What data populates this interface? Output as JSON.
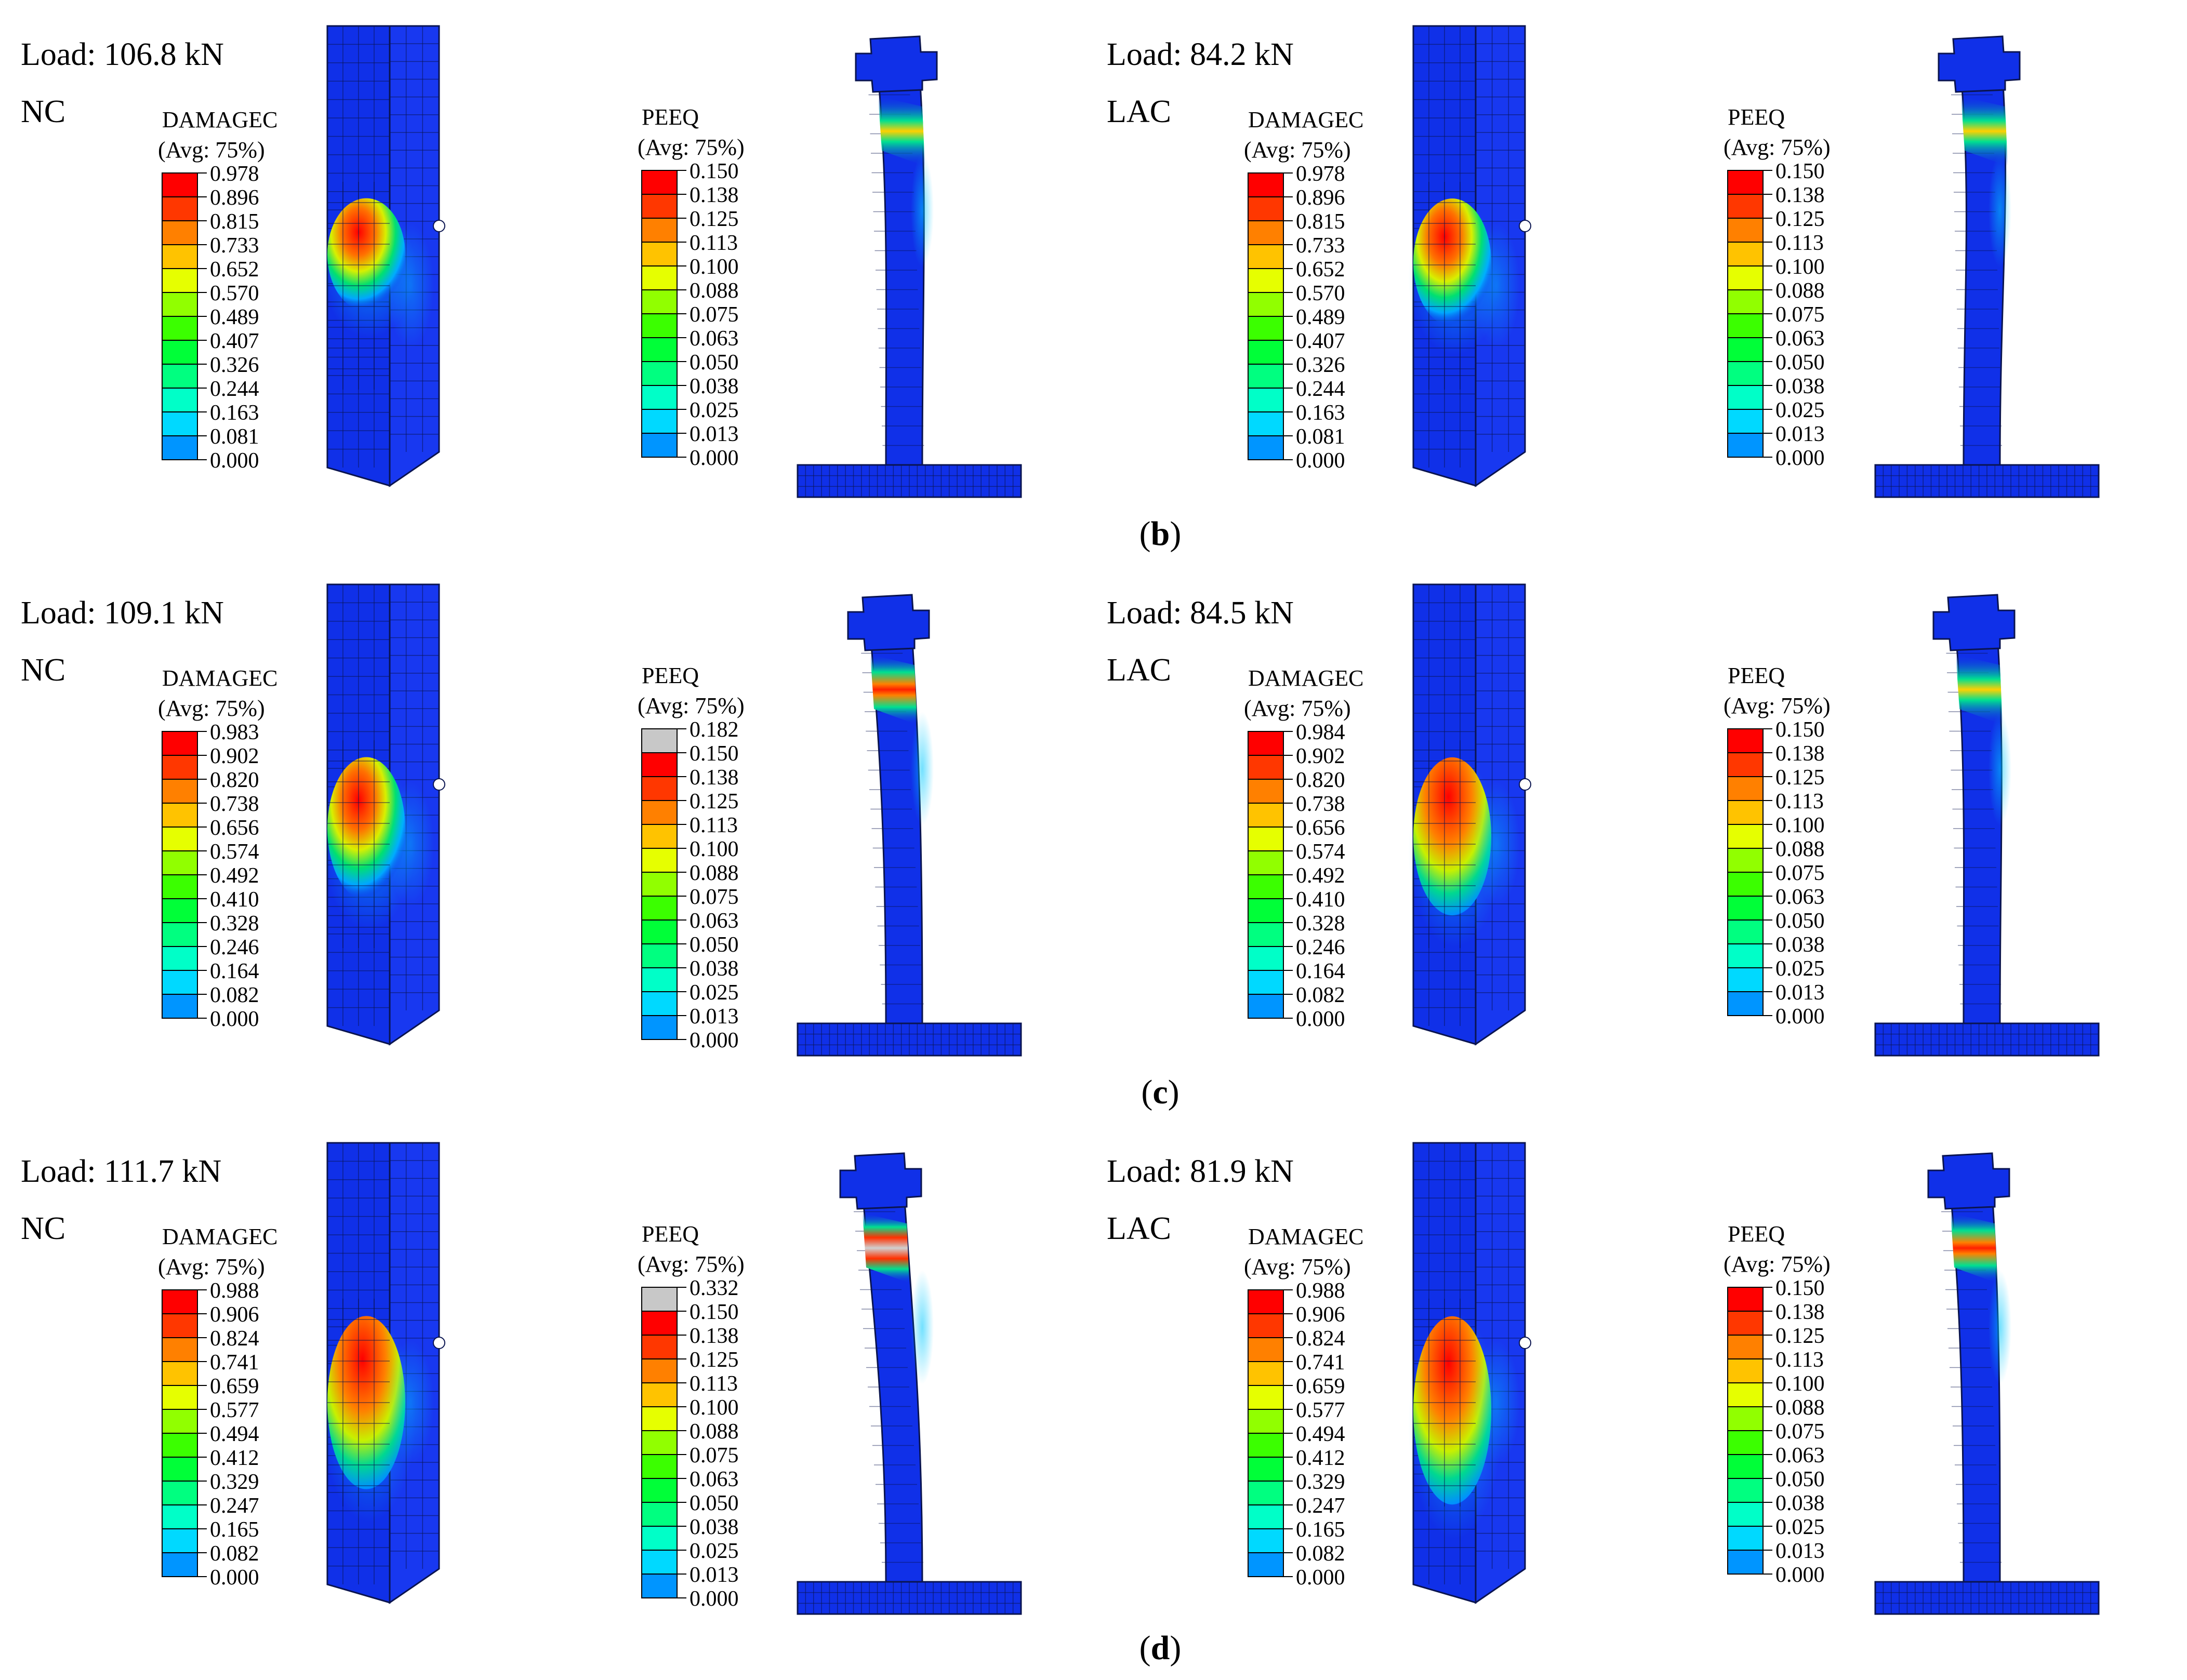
{
  "colors": {
    "legend": [
      "#0000ff",
      "#0048ff",
      "#0095ff",
      "#00d9ff",
      "#00ffc8",
      "#00ff80",
      "#00ff38",
      "#3bff00",
      "#91ff00",
      "#e6ff00",
      "#ffc300",
      "#ff8000",
      "#ff3700",
      "#ff0000"
    ],
    "legend_over": "#c8c8c8",
    "model_base": "#1030e8",
    "mesh_line": "#0a1450"
  },
  "rows": [
    {
      "caption": {
        "open": "(",
        "letter": "b",
        "close": ")"
      },
      "panels": [
        {
          "load": "Load: 106.8 kN",
          "mix": "NC",
          "damage": {
            "title": "DAMAGEC",
            "avg": "(Avg: 75%)",
            "values": [
              "0.978",
              "0.896",
              "0.815",
              "0.733",
              "0.652",
              "0.570",
              "0.489",
              "0.407",
              "0.326",
              "0.244",
              "0.163",
              "0.081",
              "0.000"
            ]
          },
          "peeq": {
            "title": "PEEQ",
            "avg": "(Avg: 75%)",
            "values": [
              "0.150",
              "0.138",
              "0.125",
              "0.113",
              "0.100",
              "0.088",
              "0.075",
              "0.063",
              "0.050",
              "0.038",
              "0.025",
              "0.013",
              "0.000"
            ]
          }
        },
        {
          "load": "Load: 84.2 kN",
          "mix": "LAC",
          "damage": {
            "title": "DAMAGEC",
            "avg": "(Avg: 75%)",
            "values": [
              "0.978",
              "0.896",
              "0.815",
              "0.733",
              "0.652",
              "0.570",
              "0.489",
              "0.407",
              "0.326",
              "0.244",
              "0.163",
              "0.081",
              "0.000"
            ]
          },
          "peeq": {
            "title": "PEEQ",
            "avg": "(Avg: 75%)",
            "values": [
              "0.150",
              "0.138",
              "0.125",
              "0.113",
              "0.100",
              "0.088",
              "0.075",
              "0.063",
              "0.050",
              "0.038",
              "0.025",
              "0.013",
              "0.000"
            ]
          }
        }
      ]
    },
    {
      "caption": {
        "open": "(",
        "letter": "c",
        "close": ")"
      },
      "panels": [
        {
          "load": "Load: 109.1 kN",
          "mix": "NC",
          "damage": {
            "title": "DAMAGEC",
            "avg": "(Avg: 75%)",
            "values": [
              "0.983",
              "0.902",
              "0.820",
              "0.738",
              "0.656",
              "0.574",
              "0.492",
              "0.410",
              "0.328",
              "0.246",
              "0.164",
              "0.082",
              "0.000"
            ]
          },
          "peeq": {
            "title": "PEEQ",
            "avg": "(Avg: 75%)",
            "values": [
              "0.182",
              "0.150",
              "0.138",
              "0.125",
              "0.113",
              "0.100",
              "0.088",
              "0.075",
              "0.063",
              "0.050",
              "0.038",
              "0.025",
              "0.013",
              "0.000"
            ]
          }
        },
        {
          "load": "Load: 84.5 kN",
          "mix": "LAC",
          "damage": {
            "title": "DAMAGEC",
            "avg": "(Avg: 75%)",
            "values": [
              "0.984",
              "0.902",
              "0.820",
              "0.738",
              "0.656",
              "0.574",
              "0.492",
              "0.410",
              "0.328",
              "0.246",
              "0.164",
              "0.082",
              "0.000"
            ]
          },
          "peeq": {
            "title": "PEEQ",
            "avg": "(Avg: 75%)",
            "values": [
              "0.150",
              "0.138",
              "0.125",
              "0.113",
              "0.100",
              "0.088",
              "0.075",
              "0.063",
              "0.050",
              "0.038",
              "0.025",
              "0.013",
              "0.000"
            ]
          }
        }
      ]
    },
    {
      "caption": {
        "open": "(",
        "letter": "d",
        "close": ")"
      },
      "panels": [
        {
          "load": "Load: 111.7 kN",
          "mix": "NC",
          "damage": {
            "title": "DAMAGEC",
            "avg": "(Avg: 75%)",
            "values": [
              "0.988",
              "0.906",
              "0.824",
              "0.741",
              "0.659",
              "0.577",
              "0.494",
              "0.412",
              "0.329",
              "0.247",
              "0.165",
              "0.082",
              "0.000"
            ]
          },
          "peeq": {
            "title": "PEEQ",
            "avg": "(Avg: 75%)",
            "values": [
              "0.332",
              "0.150",
              "0.138",
              "0.125",
              "0.113",
              "0.100",
              "0.088",
              "0.075",
              "0.063",
              "0.050",
              "0.038",
              "0.025",
              "0.013",
              "0.000"
            ]
          }
        },
        {
          "load": "Load: 81.9 kN",
          "mix": "LAC",
          "damage": {
            "title": "DAMAGEC",
            "avg": "(Avg: 75%)",
            "values": [
              "0.988",
              "0.906",
              "0.824",
              "0.741",
              "0.659",
              "0.577",
              "0.494",
              "0.412",
              "0.329",
              "0.247",
              "0.165",
              "0.082",
              "0.000"
            ]
          },
          "peeq": {
            "title": "PEEQ",
            "avg": "(Avg: 75%)",
            "values": [
              "0.150",
              "0.138",
              "0.125",
              "0.113",
              "0.100",
              "0.088",
              "0.075",
              "0.063",
              "0.050",
              "0.038",
              "0.025",
              "0.013",
              "0.000"
            ]
          }
        }
      ]
    }
  ]
}
